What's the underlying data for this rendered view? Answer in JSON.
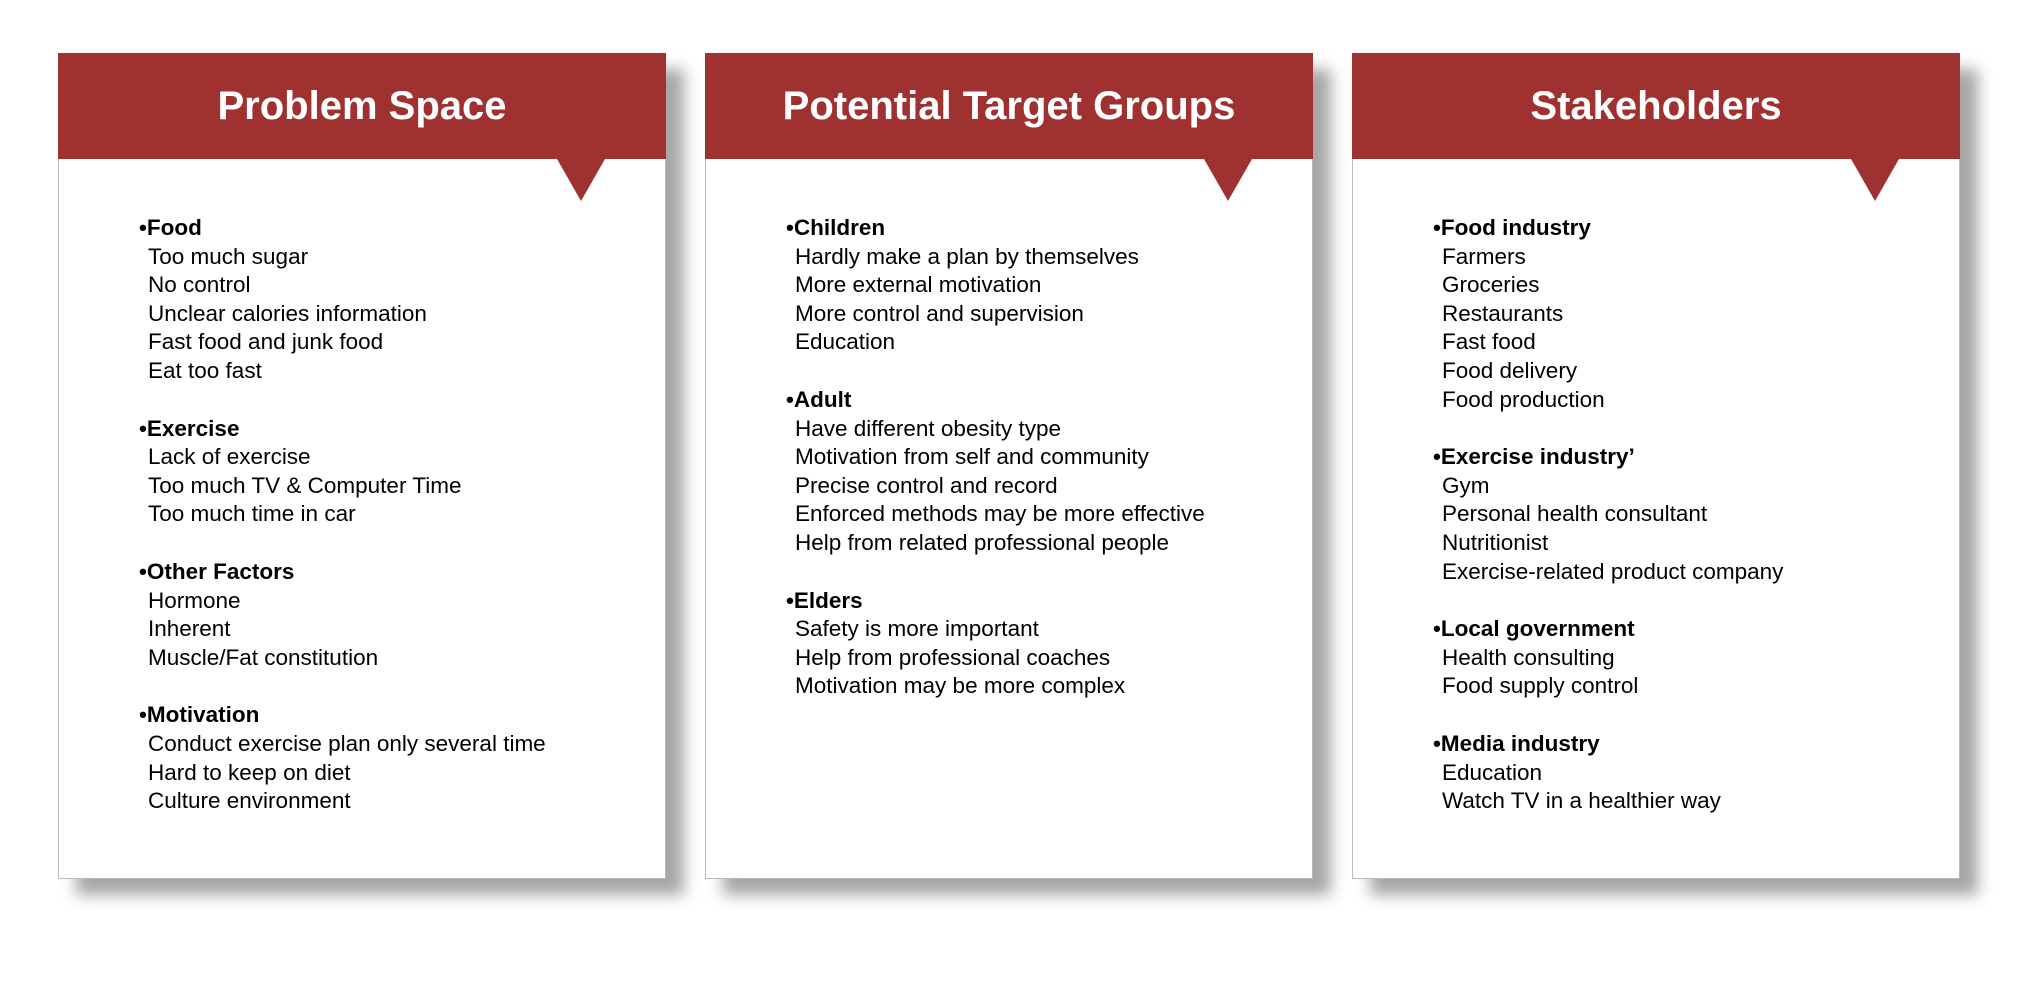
{
  "columns": [
    {
      "title": "Problem Space",
      "groups": [
        {
          "heading": "•Food",
          "items": [
            "Too much sugar",
            "No control",
            "Unclear calories information",
            "Fast food and junk food",
            "Eat too fast"
          ]
        },
        {
          "heading": "•Exercise",
          "items": [
            "Lack of exercise",
            "Too much TV & Computer Time",
            "Too much time in car"
          ]
        },
        {
          "heading": "•Other Factors",
          "items": [
            "Hormone",
            "Inherent",
            "Muscle/Fat constitution"
          ]
        },
        {
          "heading": "•Motivation",
          "items": [
            "Conduct exercise plan only several time",
            "Hard to keep on diet",
            "Culture environment"
          ]
        }
      ]
    },
    {
      "title": "Potential Target Groups",
      "groups": [
        {
          "heading": "•Children",
          "items": [
            "Hardly make a plan by themselves",
            "More external motivation",
            "More control and supervision",
            "Education"
          ]
        },
        {
          "heading": "•Adult",
          "items": [
            "Have different obesity type",
            "Motivation from self and community",
            "Precise control and record",
            "Enforced methods may be more effective",
            "Help from related professional people"
          ]
        },
        {
          "heading": "•Elders",
          "items": [
            "Safety is more important",
            "Help from professional coaches",
            "Motivation may be more complex"
          ]
        }
      ]
    },
    {
      "title": "Stakeholders",
      "groups": [
        {
          "heading": "•Food industry",
          "items": [
            "Farmers",
            "Groceries",
            "Restaurants",
            "Fast food",
            "Food delivery",
            "Food production"
          ]
        },
        {
          "heading": "•Exercise industry’",
          "items": [
            "Gym",
            "Personal health consultant",
            "Nutritionist",
            "Exercise-related product company"
          ]
        },
        {
          "heading": "•Local government",
          "items": [
            "Health consulting",
            "Food supply control"
          ]
        },
        {
          "heading": "•Media industry",
          "items": [
            "Education",
            "Watch TV in a healthier way"
          ]
        }
      ]
    }
  ],
  "colors": {
    "header": "#a03131",
    "header_text": "#ffffff",
    "body_text": "#000000",
    "card_border": "#b9b9b9"
  }
}
